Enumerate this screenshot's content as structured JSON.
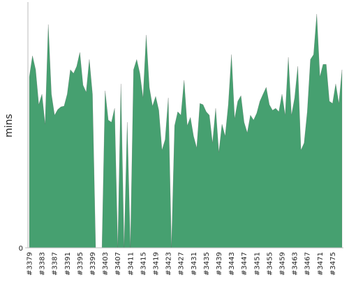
{
  "chart_data": {
    "type": "area",
    "y_label": "mins",
    "color": "#46a070",
    "ylim": [
      0,
      100
    ],
    "yticks": [
      0
    ],
    "categories": [
      "#3379",
      null,
      null,
      null,
      "#3383",
      null,
      null,
      null,
      "#3387",
      null,
      null,
      null,
      "#3391",
      null,
      null,
      null,
      "#3395",
      null,
      null,
      null,
      "#3399",
      null,
      null,
      null,
      "#3403",
      null,
      null,
      null,
      "#3407",
      null,
      null,
      null,
      "#3411",
      null,
      null,
      null,
      "#3415",
      null,
      null,
      null,
      "#3419",
      null,
      null,
      null,
      "#3423",
      null,
      null,
      null,
      "#3427",
      null,
      null,
      null,
      "#3431",
      null,
      null,
      null,
      "#3435",
      null,
      null,
      null,
      "#3439",
      null,
      null,
      null,
      "#3443",
      null,
      null,
      null,
      "#3447",
      null,
      null,
      null,
      "#3451",
      null,
      null,
      null,
      "#3455",
      null,
      null,
      null,
      "#3459",
      null,
      null,
      null,
      "#3463",
      null,
      null,
      null,
      "#3467",
      null,
      null,
      null,
      "#3471",
      null,
      null,
      null,
      "#3475",
      null,
      null,
      null
    ],
    "values": [
      70.0,
      78.6,
      72.9,
      58.6,
      62.9,
      50.6,
      91.4,
      62.9,
      54.3,
      56.6,
      57.7,
      58.0,
      62.9,
      72.9,
      71.4,
      74.3,
      80.0,
      66.6,
      63.7,
      77.1,
      62.9,
      0,
      0,
      0,
      64.3,
      52.3,
      51.4,
      57.1,
      0,
      67.1,
      0,
      51.4,
      0,
      72.9,
      77.1,
      71.4,
      61.4,
      87.1,
      65.7,
      58.0,
      62.0,
      56.3,
      40.0,
      44.3,
      61.4,
      0,
      50.0,
      55.7,
      54.3,
      68.6,
      50.0,
      53.4,
      45.7,
      40.9,
      59.1,
      58.6,
      55.7,
      54.3,
      42.9,
      57.1,
      39.1,
      50.6,
      45.7,
      58.6,
      79.1,
      52.9,
      60.0,
      62.3,
      51.4,
      47.1,
      54.3,
      52.3,
      55.1,
      60.0,
      62.9,
      65.7,
      58.6,
      56.3,
      57.1,
      55.7,
      62.9,
      54.3,
      78.0,
      54.3,
      61.4,
      74.3,
      40.0,
      42.9,
      55.7,
      77.1,
      79.1,
      95.7,
      70.0,
      75.1,
      75.1,
      60.0,
      59.1,
      67.1,
      59.1,
      72.9
    ]
  }
}
